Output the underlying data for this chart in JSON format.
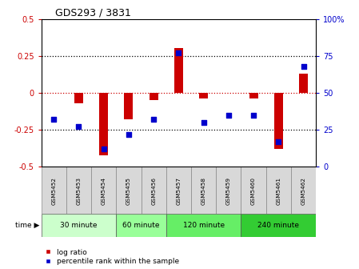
{
  "title": "GDS293 / 3831",
  "samples": [
    "GSM5452",
    "GSM5453",
    "GSM5454",
    "GSM5455",
    "GSM5456",
    "GSM5457",
    "GSM5458",
    "GSM5459",
    "GSM5460",
    "GSM5461",
    "GSM5462"
  ],
  "log_ratio": [
    0.0,
    -0.07,
    -0.42,
    -0.18,
    -0.05,
    0.3,
    -0.04,
    0.0,
    -0.04,
    -0.38,
    0.13
  ],
  "percentile": [
    32,
    27,
    12,
    22,
    32,
    77,
    30,
    35,
    35,
    17,
    68
  ],
  "bar_color": "#cc0000",
  "dot_color": "#0000cc",
  "ylim_left": [
    -0.5,
    0.5
  ],
  "ylim_right": [
    0,
    100
  ],
  "yticks_left": [
    -0.5,
    -0.25,
    0,
    0.25,
    0.5
  ],
  "yticks_right": [
    0,
    25,
    50,
    75,
    100
  ],
  "time_groups": [
    {
      "label": "30 minute",
      "start": 0,
      "end": 2,
      "color": "#ccffcc"
    },
    {
      "label": "60 minute",
      "start": 3,
      "end": 4,
      "color": "#99ff99"
    },
    {
      "label": "120 minute",
      "start": 5,
      "end": 7,
      "color": "#66ee66"
    },
    {
      "label": "240 minute",
      "start": 8,
      "end": 10,
      "color": "#33cc33"
    }
  ],
  "legend_bar_label": "log ratio",
  "legend_dot_label": "percentile rank within the sample",
  "bg_color": "#ffffff",
  "tick_color_left": "#cc0000",
  "tick_color_right": "#0000cc",
  "cell_bg": "#d8d8d8",
  "title_fontsize": 9,
  "bar_width": 0.35,
  "dot_size": 22
}
